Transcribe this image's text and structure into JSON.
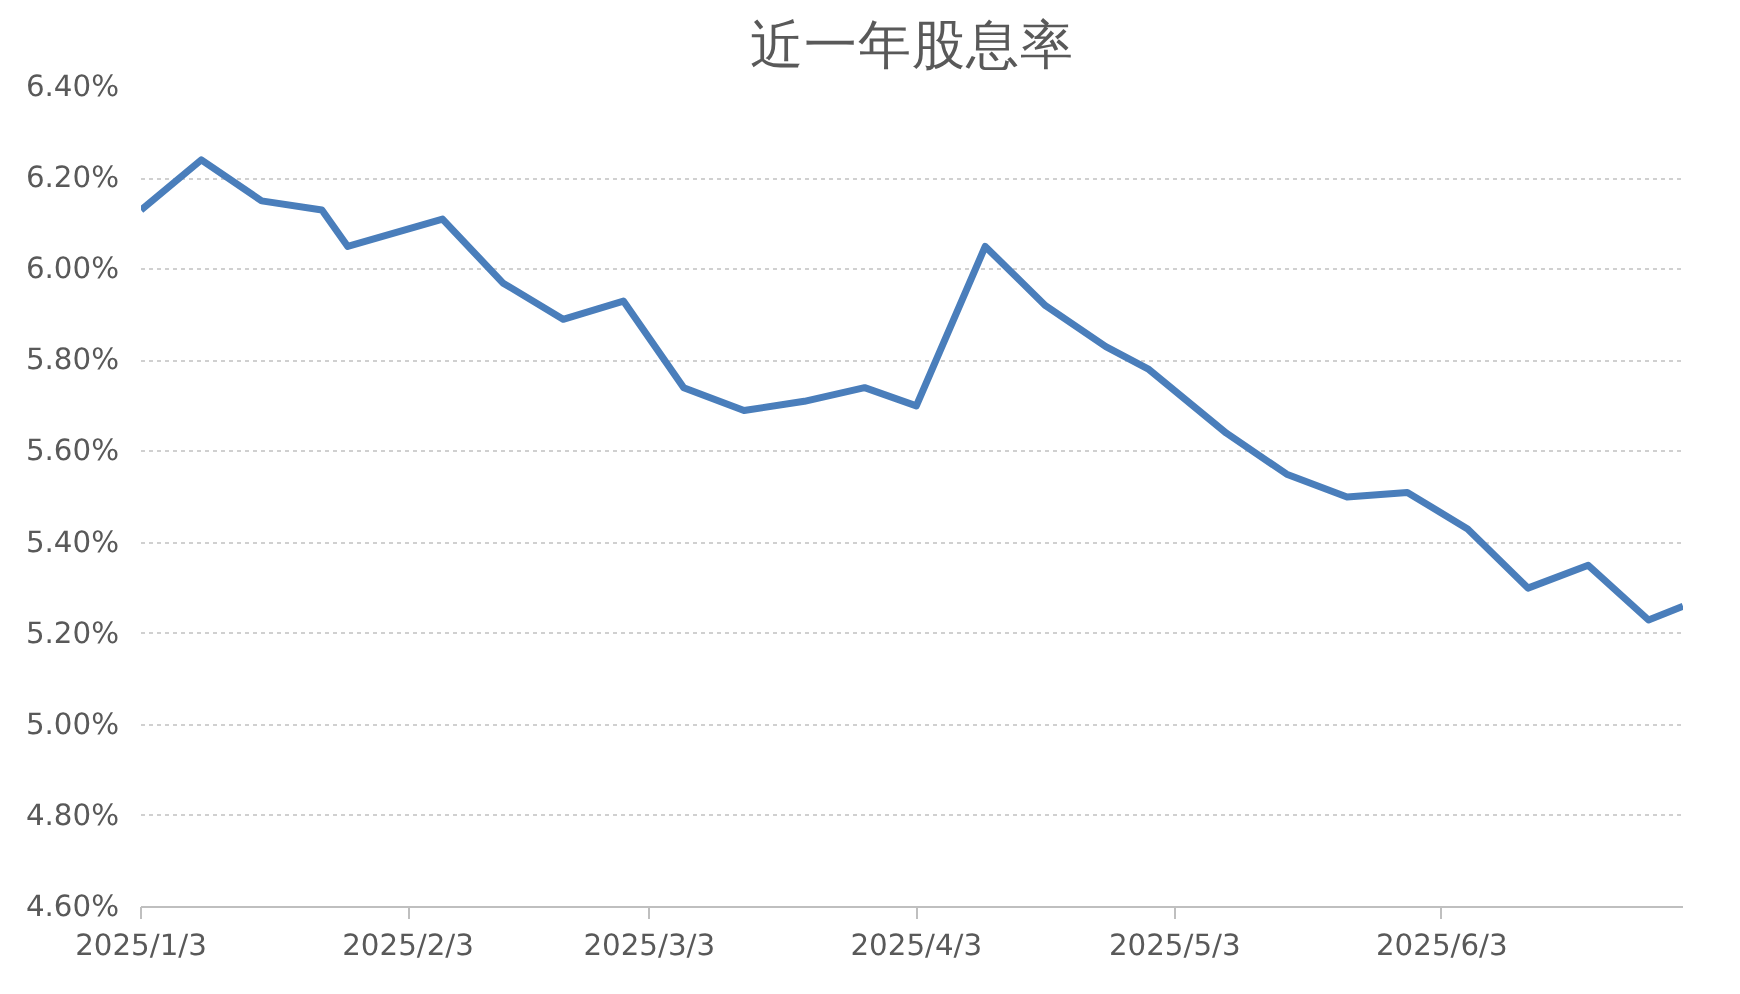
{
  "chart_data": {
    "type": "line",
    "title": "近一年股息率",
    "x": [
      "2025-01-03",
      "2025-01-10",
      "2025-01-17",
      "2025-01-24",
      "2025-01-27",
      "2025-02-07",
      "2025-02-14",
      "2025-02-21",
      "2025-02-28",
      "2025-03-07",
      "2025-03-14",
      "2025-03-21",
      "2025-03-28",
      "2025-04-03",
      "2025-04-11",
      "2025-04-18",
      "2025-04-25",
      "2025-04-30",
      "2025-05-09",
      "2025-05-16",
      "2025-05-23",
      "2025-05-30",
      "2025-06-06",
      "2025-06-13",
      "2025-06-20",
      "2025-06-27",
      "2025-07-01"
    ],
    "series": [
      {
        "color": "#4a7ebb",
        "values": [
          6.13,
          6.24,
          6.15,
          6.13,
          6.05,
          6.11,
          5.97,
          5.89,
          5.93,
          5.74,
          5.69,
          5.71,
          5.74,
          5.7,
          6.05,
          5.92,
          5.83,
          5.78,
          5.64,
          5.55,
          5.5,
          5.51,
          5.43,
          5.3,
          5.35,
          5.23,
          5.26
        ]
      }
    ],
    "xlim": [
      "2025-01-03",
      "2025-07-01"
    ],
    "xticks": [
      {
        "value": "2025-01-03",
        "label": "2025/1/3"
      },
      {
        "value": "2025-02-03",
        "label": "2025/2/3"
      },
      {
        "value": "2025-03-03",
        "label": "2025/3/3"
      },
      {
        "value": "2025-04-03",
        "label": "2025/4/3"
      },
      {
        "value": "2025-05-03",
        "label": "2025/5/3"
      },
      {
        "value": "2025-06-03",
        "label": "2025/6/3"
      }
    ],
    "ylim": [
      4.6,
      6.4
    ],
    "yticks": [
      {
        "value": 4.6,
        "label": "4.60%"
      },
      {
        "value": 4.8,
        "label": "4.80%"
      },
      {
        "value": 5.0,
        "label": "5.00%"
      },
      {
        "value": 5.2,
        "label": "5.20%"
      },
      {
        "value": 5.4,
        "label": "5.40%"
      },
      {
        "value": 5.6,
        "label": "5.60%"
      },
      {
        "value": 5.8,
        "label": "5.80%"
      },
      {
        "value": 6.0,
        "label": "6.00%"
      },
      {
        "value": 6.2,
        "label": "6.20%"
      },
      {
        "value": 6.4,
        "label": "6.40%"
      }
    ],
    "grid": "y",
    "line_style": "solid",
    "marker": "none"
  }
}
